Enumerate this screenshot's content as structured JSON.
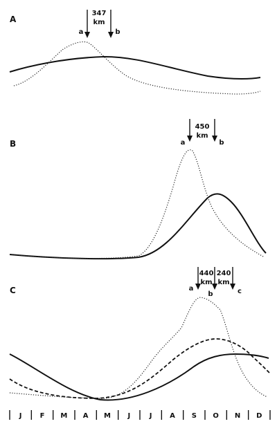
{
  "panels": [
    {
      "id": "A",
      "label": "A",
      "distance": "347",
      "unit": "km",
      "left": "a",
      "right": "b"
    },
    {
      "id": "B",
      "label": "B",
      "distance": "450",
      "unit": "km",
      "left": "a",
      "right": "b"
    },
    {
      "id": "C",
      "label": "C",
      "distances": [
        "440",
        "240"
      ],
      "unit": "km",
      "left": "a",
      "middle": "b",
      "right": "c"
    }
  ],
  "months": [
    "J",
    "F",
    "M",
    "A",
    "M",
    "J",
    "J",
    "A",
    "S",
    "O",
    "N",
    "D"
  ]
}
